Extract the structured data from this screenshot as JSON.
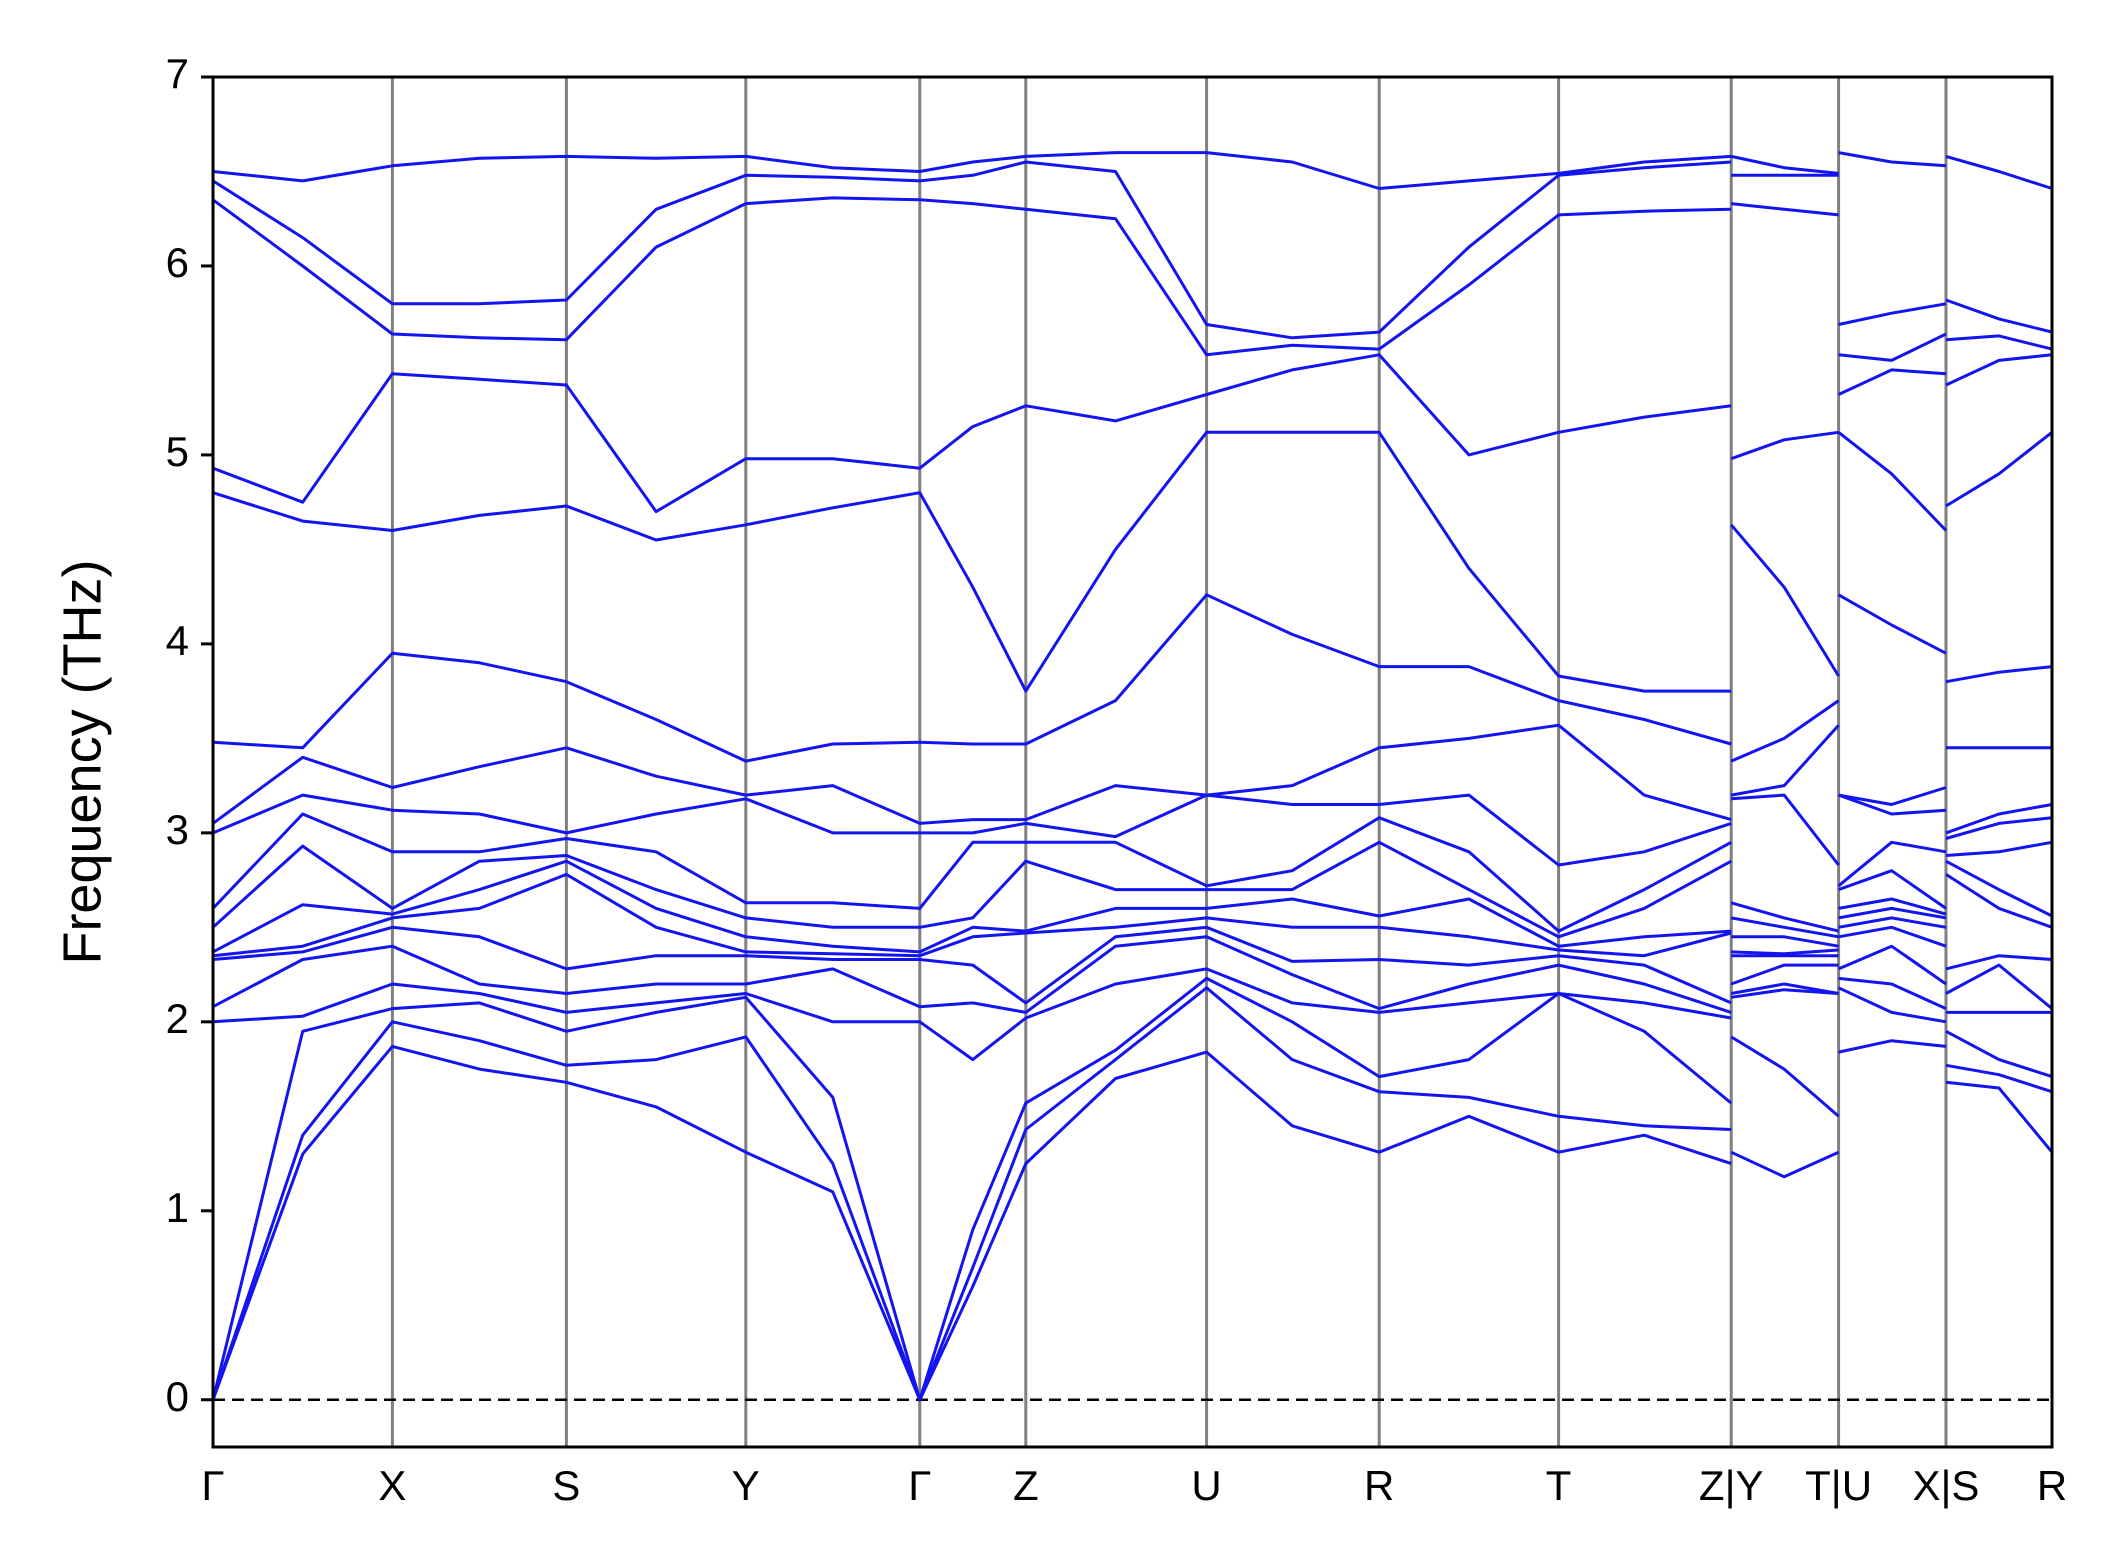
{
  "chart_data": {
    "type": "line",
    "ylabel": "Frequency (THz)",
    "color": "#1414f0",
    "xlim": [
      0,
      13.53
    ],
    "ylim": [
      -0.25,
      7
    ],
    "yticks": [
      0,
      1,
      2,
      3,
      4,
      5,
      6,
      7
    ],
    "xticks": [
      {
        "value": 0,
        "label": "Γ"
      },
      {
        "value": 1.32,
        "label": "X"
      },
      {
        "value": 2.6,
        "label": "S"
      },
      {
        "value": 3.92,
        "label": "Y"
      },
      {
        "value": 5.2,
        "label": "Γ"
      },
      {
        "value": 5.98,
        "label": "Z"
      },
      {
        "value": 7.31,
        "label": "U"
      },
      {
        "value": 8.58,
        "label": "R"
      },
      {
        "value": 9.9,
        "label": "T"
      },
      {
        "value": 11.17,
        "label": "Z|Y"
      },
      {
        "value": 11.96,
        "label": "T|U"
      },
      {
        "value": 12.75,
        "label": "X|S"
      },
      {
        "value": 13.53,
        "label": "R"
      }
    ],
    "hlines": [
      0
    ],
    "x": [
      0,
      0.66,
      1.32,
      1.96,
      2.6,
      3.26,
      3.92,
      4.56,
      5.2,
      5.59,
      5.98,
      6.64,
      7.31,
      7.94,
      8.58,
      9.24,
      9.9,
      10.53,
      11.17,
      11.17,
      11.17,
      11.56,
      11.96,
      11.96,
      11.96,
      12.35,
      12.75,
      12.75,
      12.75,
      13.14,
      13.53
    ],
    "series": [
      {
        "values": [
          0,
          1.3,
          1.87,
          1.75,
          1.68,
          1.55,
          1.31,
          1.1,
          0,
          0.6,
          1.25,
          1.7,
          1.84,
          1.45,
          1.31,
          1.5,
          1.31,
          1.4,
          1.25,
          null,
          1.31,
          1.18,
          1.31,
          null,
          1.84,
          1.9,
          1.87,
          null,
          1.68,
          1.65,
          1.31
        ]
      },
      {
        "values": [
          0,
          1.4,
          2.0,
          1.9,
          1.77,
          1.8,
          1.92,
          1.25,
          0,
          0.7,
          1.43,
          1.8,
          2.18,
          1.8,
          1.63,
          1.6,
          1.5,
          1.45,
          1.43,
          null,
          1.92,
          1.75,
          1.5,
          null,
          2.18,
          2.05,
          2.0,
          null,
          1.77,
          1.72,
          1.63
        ]
      },
      {
        "values": [
          0,
          1.95,
          2.07,
          2.1,
          1.95,
          2.05,
          2.13,
          1.6,
          0,
          0.9,
          1.57,
          1.85,
          2.23,
          2.0,
          1.71,
          1.8,
          2.15,
          1.95,
          1.57,
          null,
          2.13,
          2.17,
          2.15,
          null,
          2.23,
          2.2,
          2.07,
          null,
          1.95,
          1.8,
          1.71
        ]
      },
      {
        "values": [
          2.0,
          2.03,
          2.2,
          2.15,
          2.05,
          2.1,
          2.15,
          2.0,
          2.0,
          1.8,
          2.02,
          2.2,
          2.28,
          2.1,
          2.05,
          2.1,
          2.15,
          2.1,
          2.02,
          null,
          2.15,
          2.2,
          2.15,
          null,
          2.28,
          2.4,
          2.2,
          null,
          2.05,
          2.05,
          2.05
        ]
      },
      {
        "values": [
          2.08,
          2.33,
          2.4,
          2.2,
          2.15,
          2.2,
          2.2,
          2.28,
          2.08,
          2.1,
          2.05,
          2.4,
          2.45,
          2.25,
          2.07,
          2.2,
          2.3,
          2.2,
          2.05,
          null,
          2.2,
          2.3,
          2.3,
          null,
          2.45,
          2.5,
          2.4,
          null,
          2.15,
          2.3,
          2.07
        ]
      },
      {
        "values": [
          2.33,
          2.37,
          2.5,
          2.45,
          2.28,
          2.35,
          2.35,
          2.33,
          2.33,
          2.3,
          2.1,
          2.45,
          2.5,
          2.32,
          2.33,
          2.3,
          2.35,
          2.3,
          2.1,
          null,
          2.35,
          2.35,
          2.35,
          null,
          2.5,
          2.55,
          2.5,
          null,
          2.28,
          2.35,
          2.33
        ]
      },
      {
        "values": [
          2.35,
          2.4,
          2.55,
          2.6,
          2.78,
          2.5,
          2.37,
          2.36,
          2.35,
          2.45,
          2.47,
          2.5,
          2.55,
          2.5,
          2.5,
          2.45,
          2.38,
          2.35,
          2.47,
          null,
          2.37,
          2.36,
          2.38,
          null,
          2.55,
          2.6,
          2.55,
          null,
          2.78,
          2.6,
          2.5
        ]
      },
      {
        "values": [
          2.37,
          2.62,
          2.57,
          2.7,
          2.85,
          2.6,
          2.45,
          2.4,
          2.37,
          2.5,
          2.48,
          2.6,
          2.6,
          2.65,
          2.56,
          2.65,
          2.4,
          2.45,
          2.48,
          null,
          2.45,
          2.45,
          2.4,
          null,
          2.6,
          2.65,
          2.57,
          null,
          2.85,
          2.7,
          2.56
        ]
      },
      {
        "values": [
          2.5,
          2.93,
          2.6,
          2.85,
          2.88,
          2.7,
          2.55,
          2.5,
          2.5,
          2.55,
          2.85,
          2.7,
          2.7,
          2.7,
          2.95,
          2.7,
          2.45,
          2.6,
          2.85,
          null,
          2.55,
          2.5,
          2.45,
          null,
          2.7,
          2.8,
          2.6,
          null,
          2.88,
          2.9,
          2.95
        ]
      },
      {
        "values": [
          2.6,
          3.1,
          2.9,
          2.9,
          2.97,
          2.9,
          2.63,
          2.63,
          2.6,
          2.95,
          2.95,
          2.95,
          2.72,
          2.8,
          3.08,
          2.9,
          2.48,
          2.7,
          2.95,
          null,
          2.63,
          2.55,
          2.48,
          null,
          2.72,
          2.95,
          2.9,
          null,
          2.97,
          3.05,
          3.08
        ]
      },
      {
        "values": [
          3.0,
          3.2,
          3.12,
          3.1,
          3.0,
          3.1,
          3.18,
          3.0,
          3.0,
          3.0,
          3.05,
          2.98,
          3.2,
          3.15,
          3.15,
          3.2,
          2.83,
          2.9,
          3.05,
          null,
          3.18,
          3.2,
          2.83,
          null,
          3.2,
          3.1,
          3.12,
          null,
          3.0,
          3.1,
          3.15
        ]
      },
      {
        "values": [
          3.05,
          3.4,
          3.24,
          3.35,
          3.45,
          3.3,
          3.2,
          3.25,
          3.05,
          3.07,
          3.07,
          3.25,
          3.2,
          3.25,
          3.45,
          3.5,
          3.57,
          3.2,
          3.07,
          null,
          3.2,
          3.25,
          3.57,
          null,
          3.2,
          3.15,
          3.24,
          null,
          3.45,
          3.45,
          3.45
        ]
      },
      {
        "values": [
          3.48,
          3.45,
          3.95,
          3.9,
          3.8,
          3.6,
          3.38,
          3.47,
          3.48,
          3.47,
          3.47,
          3.7,
          4.26,
          4.05,
          3.88,
          3.88,
          3.7,
          3.6,
          3.47,
          null,
          3.38,
          3.5,
          3.7,
          null,
          4.26,
          4.1,
          3.95,
          null,
          3.8,
          3.85,
          3.88
        ]
      },
      {
        "values": [
          4.8,
          4.65,
          4.6,
          4.68,
          4.73,
          4.55,
          4.63,
          4.72,
          4.8,
          4.3,
          3.75,
          4.5,
          5.12,
          5.12,
          5.12,
          4.4,
          3.83,
          3.75,
          3.75,
          null,
          4.63,
          4.3,
          3.83,
          null,
          5.12,
          4.9,
          4.6,
          null,
          4.73,
          4.9,
          5.12
        ]
      },
      {
        "values": [
          4.93,
          4.75,
          5.43,
          5.4,
          5.37,
          4.7,
          4.98,
          4.98,
          4.93,
          5.15,
          5.26,
          5.18,
          5.32,
          5.45,
          5.53,
          5.0,
          5.12,
          5.2,
          5.26,
          null,
          4.98,
          5.08,
          5.12,
          null,
          5.32,
          5.45,
          5.43,
          null,
          5.37,
          5.5,
          5.53
        ]
      },
      {
        "values": [
          6.35,
          6.0,
          5.64,
          5.62,
          5.61,
          6.1,
          6.33,
          6.36,
          6.35,
          6.33,
          6.3,
          6.25,
          5.53,
          5.58,
          5.56,
          5.9,
          6.27,
          6.29,
          6.3,
          null,
          6.33,
          6.3,
          6.27,
          null,
          5.53,
          5.5,
          5.64,
          null,
          5.61,
          5.63,
          5.56
        ]
      },
      {
        "values": [
          6.45,
          6.15,
          5.8,
          5.8,
          5.82,
          6.3,
          6.48,
          6.47,
          6.45,
          6.48,
          6.55,
          6.5,
          5.69,
          5.62,
          5.65,
          6.1,
          6.48,
          6.52,
          6.55,
          null,
          6.48,
          6.48,
          6.48,
          null,
          5.69,
          5.75,
          5.8,
          null,
          5.82,
          5.72,
          5.65
        ]
      },
      {
        "values": [
          6.5,
          6.45,
          6.53,
          6.57,
          6.58,
          6.57,
          6.58,
          6.52,
          6.5,
          6.55,
          6.58,
          6.6,
          6.6,
          6.55,
          6.41,
          6.45,
          6.49,
          6.55,
          6.58,
          null,
          6.58,
          6.52,
          6.49,
          null,
          6.6,
          6.55,
          6.53,
          null,
          6.58,
          6.5,
          6.41
        ]
      }
    ]
  }
}
